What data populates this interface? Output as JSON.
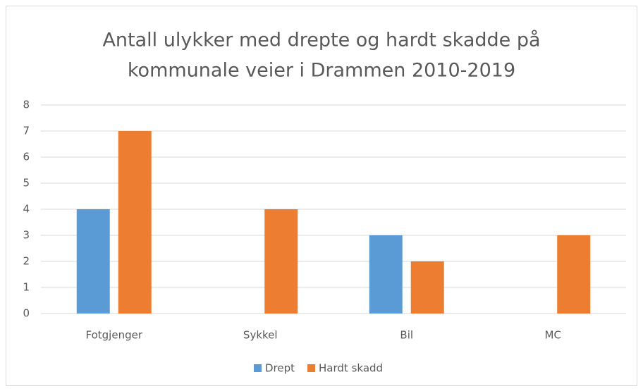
{
  "chart_data": {
    "type": "bar",
    "title": [
      "Antall ulykker med drepte og hardt skadde på",
      "kommunale veier i Drammen 2010-2019"
    ],
    "categories": [
      "Fotgjenger",
      "Sykkel",
      "Bil",
      "MC"
    ],
    "series": [
      {
        "name": "Drept",
        "color": "#5b9bd5",
        "values": [
          4,
          0,
          3,
          0
        ]
      },
      {
        "name": "Hardt skadd",
        "color": "#ed7d31",
        "values": [
          7,
          4,
          2,
          3
        ]
      }
    ],
    "ylim": [
      0,
      8
    ],
    "yticks": [
      0,
      1,
      2,
      3,
      4,
      5,
      6,
      7,
      8
    ],
    "grid": true,
    "legend": "bottom"
  }
}
